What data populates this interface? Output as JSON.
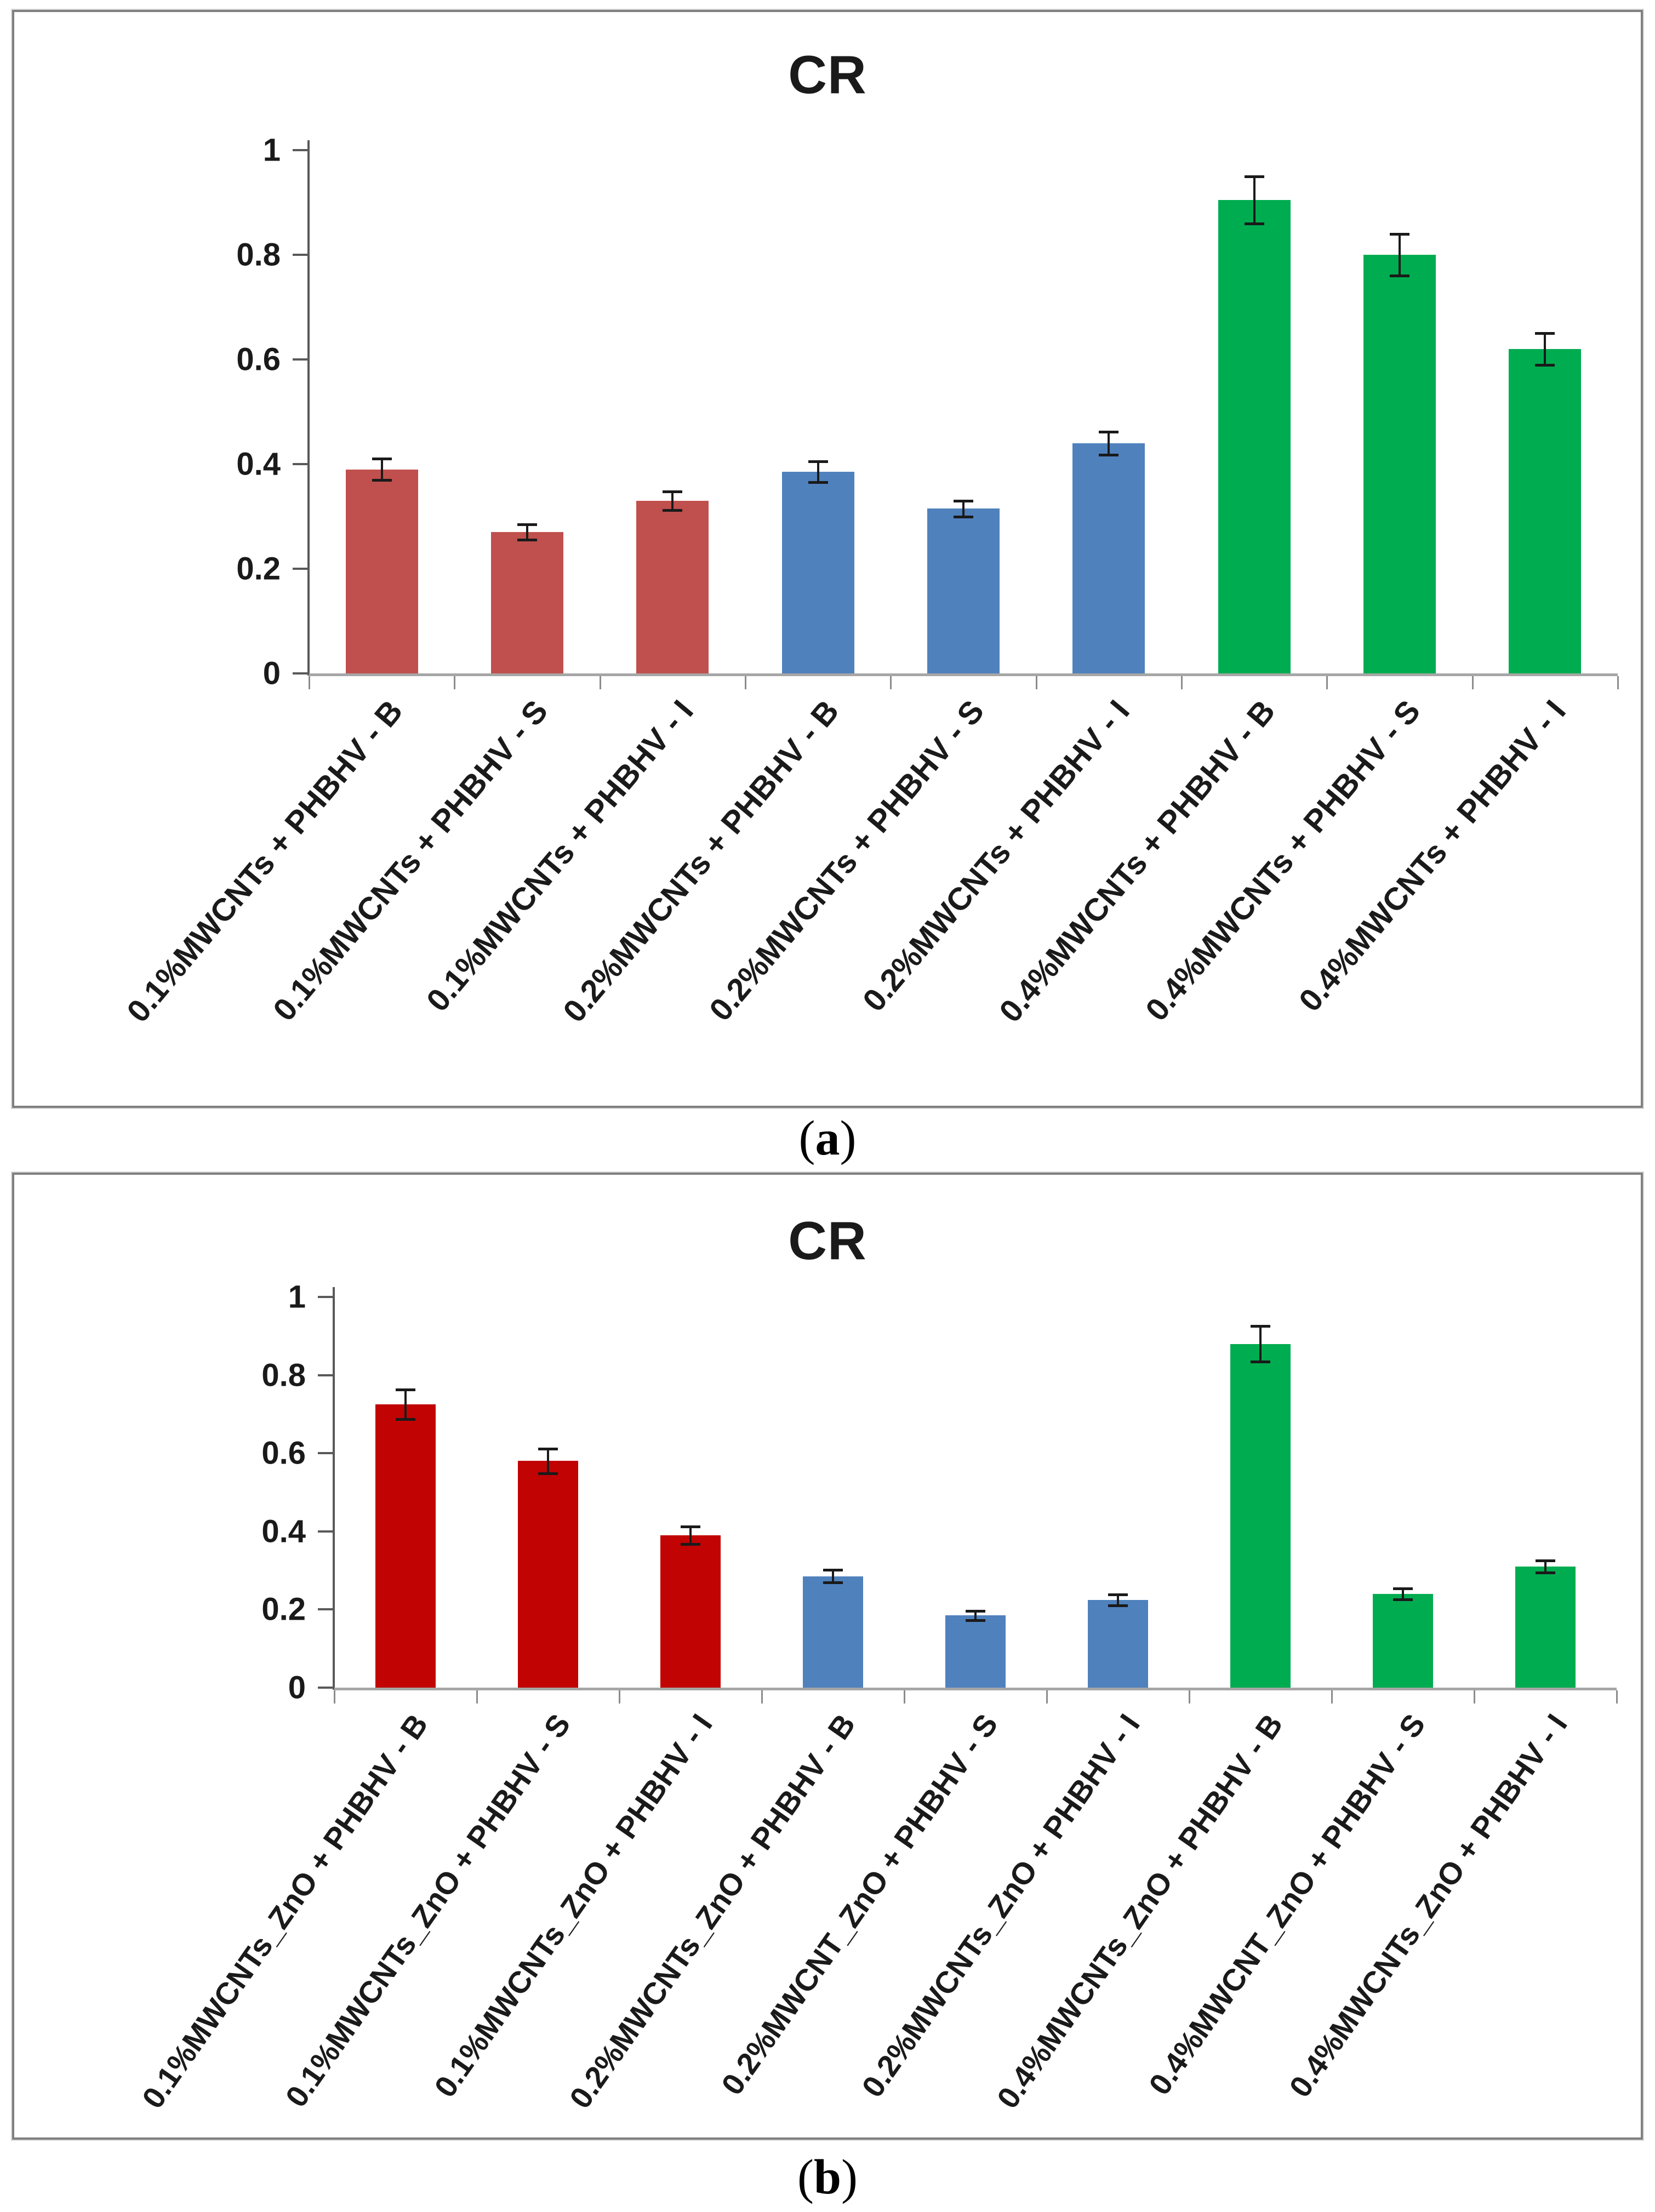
{
  "captions": [
    {
      "prefix": "(",
      "letter": "a",
      "suffix": ")"
    },
    {
      "prefix": "(",
      "letter": "b",
      "suffix": ")"
    }
  ],
  "chart_data": [
    {
      "type": "bar",
      "title": "CR",
      "panel": "a",
      "categories": [
        "0.1%MWCNTs + PHBHV - B",
        "0.1%MWCNTs + PHBHV - S",
        "0.1%MWCNTs + PHBHV - I",
        "0.2%MWCNTs + PHBHV - B",
        "0.2%MWCNTs + PHBHV - S",
        "0.2%MWCNTs + PHBHV - I",
        "0.4%MWCNTs + PHBHV - B",
        "0.4%MWCNTs + PHBHV - S",
        "0.4%MWCNTs + PHBHV - I"
      ],
      "values": [
        0.39,
        0.27,
        0.33,
        0.385,
        0.315,
        0.44,
        0.905,
        0.8,
        0.62
      ],
      "errors": [
        0.02,
        0.015,
        0.018,
        0.02,
        0.015,
        0.022,
        0.045,
        0.04,
        0.03
      ],
      "bar_colors": [
        "#C0504D",
        "#C0504D",
        "#C0504D",
        "#4F81BD",
        "#4F81BD",
        "#4F81BD",
        "#00AC50",
        "#00AC50",
        "#00AC50"
      ],
      "group_colors": {
        "0.1%MWCNTs": "#C0504D",
        "0.2%MWCNTs": "#4F81BD",
        "0.4%MWCNTs": "#00AC50"
      },
      "xlabel": "",
      "ylabel": "",
      "ylim": [
        0,
        1
      ],
      "yticks": [
        "0",
        "0.2",
        "0.4",
        "0.6",
        "0.8",
        "1"
      ],
      "grid": false,
      "legend_position": "none",
      "error_bars": true
    },
    {
      "type": "bar",
      "title": "CR",
      "panel": "b",
      "categories": [
        "0.1%MWCNTs_ZnO + PHBHV - B",
        "0.1%MWCNTs_ZnO + PHBHV - S",
        "0.1%MWCNTs_ZnO + PHBHV - I",
        "0.2%MWCNTs_ZnO + PHBHV - B",
        "0.2%MWCNT_ZnO + PHBHV - S",
        "0.2%MWCNTs_ZnO + PHBHV - I",
        "0.4%MWCNTs_ZnO + PHBHV - B",
        "0.4%MWCNT_ZnO + PHBHV - S",
        "0.4%MWCNTs_ZnO + PHBHV - I"
      ],
      "values": [
        0.725,
        0.58,
        0.39,
        0.285,
        0.185,
        0.225,
        0.88,
        0.24,
        0.31
      ],
      "errors": [
        0.038,
        0.032,
        0.022,
        0.016,
        0.012,
        0.014,
        0.045,
        0.014,
        0.016
      ],
      "bar_colors": [
        "#C10303",
        "#C10303",
        "#C10303",
        "#4F81BD",
        "#4F81BD",
        "#4F81BD",
        "#00AC50",
        "#00AC50",
        "#00AC50"
      ],
      "group_colors": {
        "0.1%MWCNTs_ZnO": "#C10303",
        "0.2%MWCNTs_ZnO": "#4F81BD",
        "0.4%MWCNTs_ZnO": "#00AC50"
      },
      "xlabel": "",
      "ylabel": "",
      "ylim": [
        0,
        1
      ],
      "yticks": [
        "0",
        "0.2",
        "0.4",
        "0.6",
        "0.8",
        "1"
      ],
      "grid": false,
      "legend_position": "none",
      "error_bars": true
    }
  ]
}
